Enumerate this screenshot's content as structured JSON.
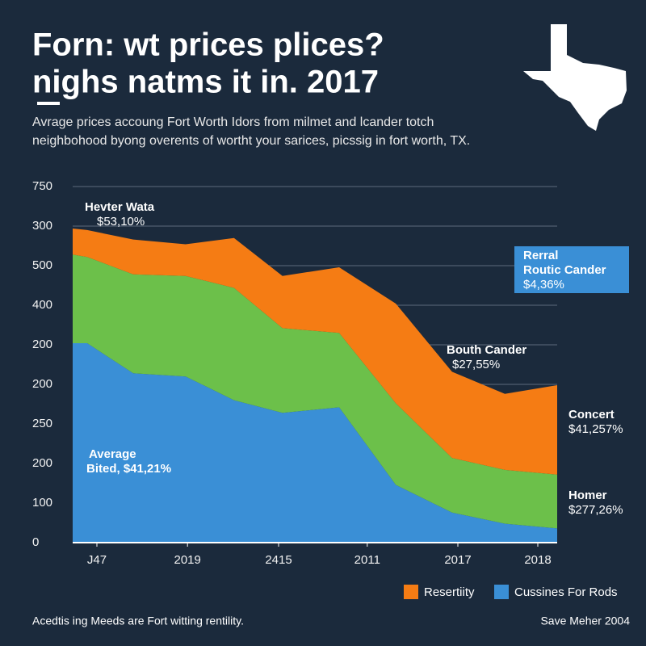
{
  "chart_data": {
    "type": "stacked-area",
    "title": [
      "Forn: wt prices plices?",
      "nighs natms it in. 2017"
    ],
    "subtitle": [
      "Avrage prices accoung Fort Worth Idors from milmet and lcander totch",
      "neighbohood byong overents of wortht your sarices, picssig in fort worth, TX."
    ],
    "x": [
      0,
      0.3,
      1.25,
      2.33,
      3.33,
      4.33,
      5.5,
      6.67,
      7.83,
      8.92,
      10
    ],
    "xlim": [
      0,
      10
    ],
    "xticks": [
      {
        "value": 0.5,
        "label": "J47"
      },
      {
        "value": 2.37,
        "label": "2019"
      },
      {
        "value": 4.25,
        "label": "2415"
      },
      {
        "value": 6.08,
        "label": "2011"
      },
      {
        "value": 7.95,
        "label": "2017"
      },
      {
        "value": 9.6,
        "label": "2018"
      }
    ],
    "ylim": [
      0,
      450
    ],
    "yticks": [
      0,
      {
        "value": 50,
        "label": "100"
      },
      {
        "value": 100,
        "label": "200"
      },
      {
        "value": 150,
        "label": "250"
      },
      {
        "value": 200,
        "label": "200"
      },
      {
        "value": 250,
        "label": "200"
      },
      {
        "value": 300,
        "label": "400"
      },
      {
        "value": 350,
        "label": "500"
      },
      {
        "value": 400,
        "label": "300"
      },
      {
        "value": 450,
        "label": "750"
      }
    ],
    "grid": true,
    "series": [
      {
        "name": "Cussines For Rods",
        "color": "#3a8fd6",
        "values": [
          252,
          252,
          214,
          210,
          180,
          164,
          171,
          73,
          38,
          24,
          18
        ]
      },
      {
        "color": "#6cc04a",
        "values": [
          112,
          109,
          125,
          127,
          142,
          107,
          94,
          103,
          69,
          68,
          68
        ]
      },
      {
        "name": "Resertiity",
        "color": "#f57c14",
        "values": [
          33,
          34,
          44,
          40,
          63,
          66,
          83,
          126,
          109,
          96,
          113
        ]
      }
    ],
    "legend_order": [
      2,
      0
    ],
    "annotations": [
      [
        "Hevter Wata",
        "$53,10%"
      ],
      [
        "Rerral",
        "Routic Cander",
        "$4,36%"
      ],
      [
        "Bouth Cander",
        "$27,55%"
      ],
      [
        "Concert",
        "$41,257%"
      ],
      [
        "Homer",
        "$277,26%"
      ],
      [
        "Average",
        "Bited, $41,21%"
      ]
    ],
    "footer": {
      "left": "Acedtis ing Meeds are Fort witting rentility.",
      "right": "Save Meher 2004"
    }
  }
}
